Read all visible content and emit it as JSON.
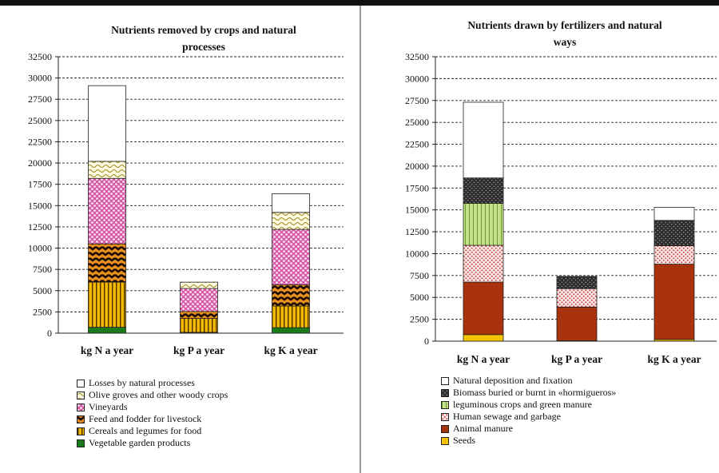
{
  "chart_data": [
    {
      "type": "bar",
      "stacked": true,
      "title": "Nutrients removed by crops and natural\nprocesses",
      "categories": [
        "kg N a year",
        "kg P a year",
        "kg K a year"
      ],
      "ylim": [
        0,
        32500
      ],
      "ytick_step": 2500,
      "ytick_labels": [
        "0",
        "2500",
        "5000",
        "7500",
        "10000",
        "12500",
        "15000",
        "17500",
        "20000",
        "22500",
        "25000",
        "27500",
        "30000",
        "32500"
      ],
      "grid": true,
      "legend_position": "bottom",
      "series": [
        {
          "name": "Vegetable garden products",
          "values": [
            700,
            100,
            650
          ],
          "color": "#1a7a1a",
          "pattern": "solid"
        },
        {
          "name": "Cereals and legumes for food",
          "values": [
            5300,
            1650,
            2550
          ],
          "color": "#f5b800",
          "pattern": "vstripes"
        },
        {
          "name": "Feed and fodder for livestock",
          "values": [
            4500,
            800,
            2500
          ],
          "color": "#3a1a0a",
          "pattern": "chevron"
        },
        {
          "name": "Vineyards",
          "values": [
            7700,
            2700,
            6500
          ],
          "color": "#d95aa8",
          "pattern": "dots"
        },
        {
          "name": "Olive groves and other woody crops",
          "values": [
            2000,
            750,
            2000
          ],
          "color": "#fffbe0",
          "pattern": "waves"
        },
        {
          "name": "Losses by natural processes",
          "values": [
            8900,
            0,
            2200
          ],
          "color": "#ffffff",
          "pattern": "solid"
        }
      ]
    },
    {
      "type": "bar",
      "stacked": true,
      "title": "Nutrients drawn by fertilizers and natural\nways",
      "categories": [
        "kg N a year",
        "kg P a year",
        "kg K a year"
      ],
      "ylim": [
        0,
        32500
      ],
      "ytick_step": 2500,
      "ytick_labels": [
        "0",
        "2500",
        "5000",
        "7500",
        "10000",
        "12500",
        "15000",
        "17500",
        "20000",
        "22500",
        "25000",
        "27500",
        "30000",
        "32500"
      ],
      "grid": true,
      "legend_position": "bottom",
      "series": [
        {
          "name": "Seeds",
          "values": [
            750,
            50,
            200
          ],
          "color": "#f5c400",
          "pattern": "solid"
        },
        {
          "name": "Animal manure",
          "values": [
            6000,
            3850,
            8600
          ],
          "color": "#a8320c",
          "pattern": "solid"
        },
        {
          "name": "Human sewage and garbage",
          "values": [
            4200,
            2100,
            2100
          ],
          "color": "#fbe3e3",
          "pattern": "reddots"
        },
        {
          "name": "leguminous crops and green manure",
          "values": [
            4800,
            0,
            0
          ],
          "color": "#c5e08a",
          "pattern": "vlines"
        },
        {
          "name": "Biomass buried or burnt in «hormigueros»",
          "values": [
            2900,
            1400,
            2900
          ],
          "color": "#333333",
          "pattern": "whitedots"
        },
        {
          "name": "Natural deposition and fixation",
          "values": [
            8650,
            0,
            1500
          ],
          "color": "#ffffff",
          "pattern": "solid"
        }
      ]
    }
  ]
}
